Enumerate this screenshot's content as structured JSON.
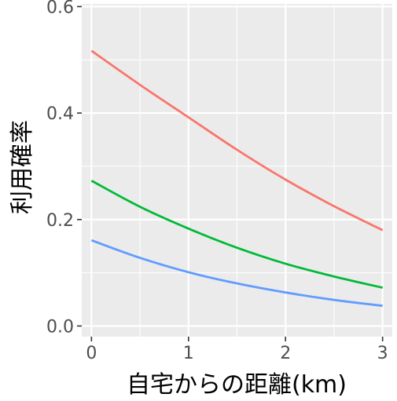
{
  "chart_data": {
    "type": "line",
    "title": "",
    "xlabel": "自宅からの距離(km)",
    "ylabel": "利用確率",
    "xlim": [
      -0.1,
      3.1
    ],
    "ylim": [
      -0.02,
      0.605
    ],
    "x_ticks": [
      0,
      1,
      2,
      3
    ],
    "x_tick_labels": [
      "0",
      "1",
      "2",
      "3"
    ],
    "y_ticks": [
      0.0,
      0.2,
      0.4,
      0.6
    ],
    "y_tick_labels": [
      "0.0",
      "0.2",
      "0.4",
      "0.6"
    ],
    "grid": true,
    "legend": "none",
    "x": [
      0,
      0.5,
      1,
      1.5,
      2,
      2.5,
      3
    ],
    "series": [
      {
        "color": "#F8766D",
        "values": [
          0.517,
          0.453,
          0.392,
          0.331,
          0.275,
          0.225,
          0.18
        ]
      },
      {
        "color": "#00BA38",
        "values": [
          0.273,
          0.224,
          0.183,
          0.147,
          0.117,
          0.093,
          0.072
        ]
      },
      {
        "color": "#619CFF",
        "values": [
          0.161,
          0.128,
          0.101,
          0.08,
          0.063,
          0.049,
          0.038
        ]
      }
    ],
    "panel_background": "#EBEBEB",
    "grid_color": "#FFFFFF"
  }
}
